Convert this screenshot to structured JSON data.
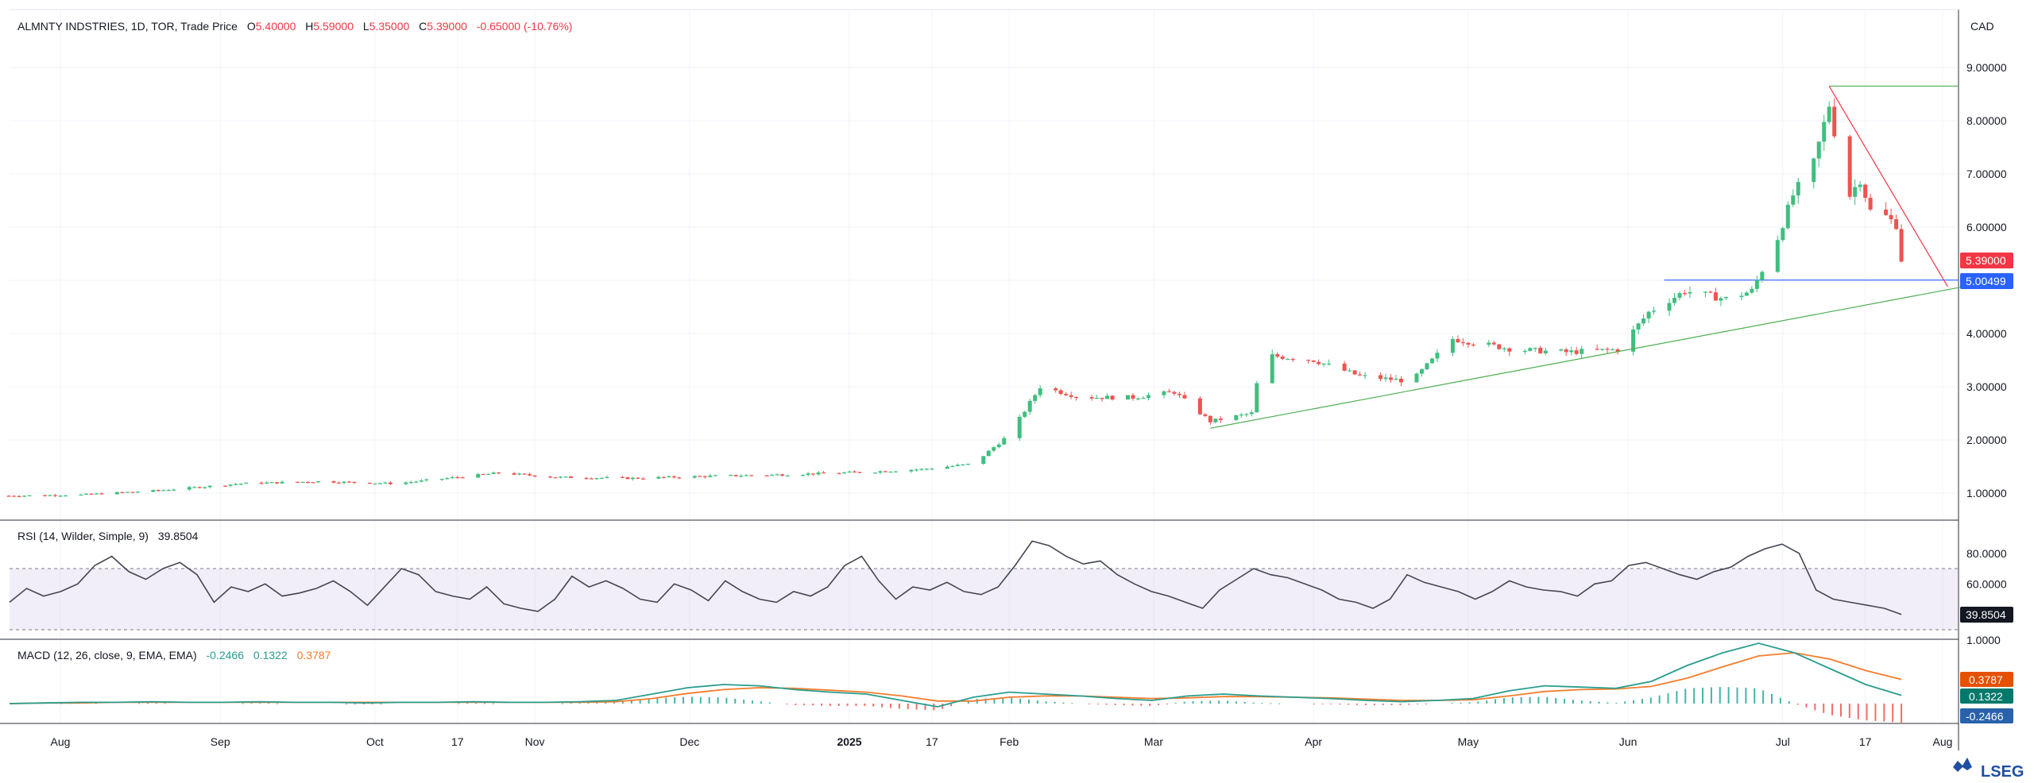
{
  "header": {
    "symbol": "ALMNTY INDSTRIES, 1D, TOR, Trade Price",
    "o_label": "O",
    "o_value": "5.40000",
    "h_label": "H",
    "h_value": "5.59000",
    "l_label": "L",
    "l_value": "5.35000",
    "c_label": "C",
    "c_value": "5.39000",
    "change": "-0.65000 (-10.76%)"
  },
  "currency": "CAD",
  "rsi": {
    "label": "RSI (14, Wilder, Simple, 9)",
    "value": "39.8504"
  },
  "macd": {
    "label": "MACD (12, 26, close, 9, EMA, EMA)",
    "v1": "-0.2466",
    "v2": "0.1322",
    "v3": "0.3787"
  },
  "price_tags": {
    "last": "5.39000",
    "line": "5.00499"
  },
  "rsi_tag": "39.8504",
  "macd_tags": [
    "0.3787",
    "0.1322",
    "-0.2466"
  ],
  "brand": "LSEG",
  "colors": {
    "up": "#26a69a",
    "up_body": "#3fbf7f",
    "down": "#ef5350",
    "line_blue": "#2962ff",
    "trend_green": "#4caf50",
    "trend_red": "#f23645",
    "rsi_line": "#434651",
    "macd_orange": "#f57c2b",
    "macd_teal": "#2a9d8f"
  },
  "chart_data": [
    {
      "type": "candlestick",
      "title": "ALMNTY INDSTRIES, 1D, TOR, Trade Price",
      "y_axis": {
        "ticks": [
          "1.00000",
          "2.00000",
          "3.00000",
          "4.00000",
          "5.00000",
          "6.00000",
          "7.00000",
          "8.00000",
          "9.00000"
        ],
        "range": [
          0.3,
          9.8
        ]
      },
      "x_axis": {
        "ticks": [
          "Aug",
          "Sep",
          "Oct",
          "17",
          "Nov",
          "Dec",
          "2025",
          "17",
          "Feb",
          "Mar",
          "Apr",
          "May",
          "Jun",
          "Jul",
          "17",
          "Aug"
        ]
      },
      "close_path": [
        [
          "2024-07-22",
          0.95
        ],
        [
          "2024-08-05",
          0.97
        ],
        [
          "2024-08-20",
          1.05
        ],
        [
          "2024-09-05",
          1.18
        ],
        [
          "2024-09-20",
          1.22
        ],
        [
          "2024-10-05",
          1.18
        ],
        [
          "2024-10-15",
          1.28
        ],
        [
          "2024-10-25",
          1.38
        ],
        [
          "2024-11-05",
          1.3
        ],
        [
          "2024-11-20",
          1.28
        ],
        [
          "2024-12-05",
          1.32
        ],
        [
          "2024-12-20",
          1.35
        ],
        [
          "2025-01-05",
          1.4
        ],
        [
          "2025-01-15",
          1.45
        ],
        [
          "2025-01-25",
          1.55
        ],
        [
          "2025-02-01",
          2.1
        ],
        [
          "2025-02-07",
          3.0
        ],
        [
          "2025-02-15",
          2.8
        ],
        [
          "2025-02-25",
          2.8
        ],
        [
          "2025-03-05",
          2.9
        ],
        [
          "2025-03-12",
          2.35
        ],
        [
          "2025-03-20",
          2.5
        ],
        [
          "2025-03-22",
          3.6
        ],
        [
          "2025-04-01",
          3.5
        ],
        [
          "2025-04-10",
          3.2
        ],
        [
          "2025-04-20",
          3.1
        ],
        [
          "2025-04-28",
          3.9
        ],
        [
          "2025-05-10",
          3.7
        ],
        [
          "2025-05-20",
          3.65
        ],
        [
          "2025-05-30",
          3.7
        ],
        [
          "2025-06-05",
          4.4
        ],
        [
          "2025-06-12",
          4.8
        ],
        [
          "2025-06-20",
          4.65
        ],
        [
          "2025-06-25",
          4.8
        ],
        [
          "2025-06-30",
          5.8
        ],
        [
          "2025-07-03",
          6.6
        ],
        [
          "2025-07-07",
          7.2
        ],
        [
          "2025-07-10",
          8.3
        ],
        [
          "2025-07-11",
          7.8
        ],
        [
          "2025-07-14",
          6.6
        ],
        [
          "2025-07-16",
          6.9
        ],
        [
          "2025-07-18",
          6.3
        ],
        [
          "2025-07-21",
          6.2
        ],
        [
          "2025-07-23",
          6.05
        ],
        [
          "2025-07-24",
          5.39
        ]
      ],
      "horizontal_lines": [
        {
          "value": 8.65,
          "color": "green"
        },
        {
          "value": 5.00499,
          "color": "blue"
        }
      ],
      "trend_lines": [
        {
          "color": "green",
          "from": [
            "2025-03-12",
            2.22
          ],
          "to": [
            "2025-08-05",
            4.88
          ]
        },
        {
          "color": "red",
          "from": [
            "2025-07-10",
            8.65
          ],
          "to": [
            "2025-08-02",
            4.88
          ]
        }
      ],
      "last_price": 5.39
    },
    {
      "type": "line",
      "title": "RSI (14, Wilder, Simple, 9)",
      "y_axis": {
        "ticks": [
          "60.0000",
          "80.0000"
        ],
        "range": [
          20,
          95
        ],
        "bands": [
          30,
          70
        ]
      },
      "series": [
        {
          "values": [
            48,
            57,
            52,
            55,
            60,
            72,
            78,
            68,
            63,
            70,
            74,
            66,
            48,
            58,
            55,
            60,
            52,
            54,
            57,
            62,
            55,
            46,
            58,
            70,
            66,
            55,
            52,
            50,
            58,
            47,
            44,
            42,
            50,
            65,
            58,
            62,
            57,
            50,
            48,
            60,
            56,
            49,
            62,
            55,
            50,
            48,
            55,
            52,
            58,
            72,
            78,
            62,
            50,
            58,
            56,
            61,
            55,
            53,
            58,
            72,
            88,
            85,
            78,
            73,
            75,
            66,
            60,
            55,
            52,
            48,
            44,
            56,
            63,
            70,
            66,
            64,
            60,
            56,
            50,
            48,
            44,
            50,
            66,
            61,
            58,
            55,
            50,
            55,
            62,
            58,
            56,
            55,
            52,
            60,
            62,
            72,
            74,
            70,
            66,
            63,
            68,
            71,
            78,
            83,
            86,
            80,
            56,
            50,
            48,
            46,
            44,
            40
          ]
        }
      ],
      "last_value": 39.8504
    },
    {
      "type": "line",
      "title": "MACD (12, 26, close, 9, EMA, EMA)",
      "y_axis": {
        "ticks": [
          "1.0000"
        ],
        "range": [
          -0.45,
          1.1
        ]
      },
      "series": [
        {
          "values": [
            0,
            0.01,
            0.02,
            0.02,
            0.03,
            0.02,
            0.02,
            0.03,
            0.02,
            0.02,
            0.01,
            0.02,
            0.02,
            0.03,
            0.02,
            0.02,
            0.03,
            0.05,
            0.15,
            0.25,
            0.3,
            0.28,
            0.22,
            0.18,
            0.15,
            0.05,
            -0.05,
            0.1,
            0.18,
            0.15,
            0.12,
            0.08,
            0.05,
            0.12,
            0.15,
            0.12,
            0.1,
            0.08,
            0.05,
            0.03,
            0.05,
            0.08,
            0.2,
            0.28,
            0.26,
            0.24,
            0.35,
            0.6,
            0.8,
            0.95,
            0.8,
            0.55,
            0.3,
            0.13
          ]
        },
        {
          "values": [
            0,
            0.01,
            0.01,
            0.02,
            0.02,
            0.02,
            0.02,
            0.02,
            0.02,
            0.02,
            0.02,
            0.02,
            0.02,
            0.02,
            0.02,
            0.02,
            0.02,
            0.03,
            0.08,
            0.16,
            0.22,
            0.25,
            0.24,
            0.21,
            0.18,
            0.12,
            0.04,
            0.04,
            0.1,
            0.12,
            0.12,
            0.1,
            0.08,
            0.09,
            0.11,
            0.11,
            0.1,
            0.09,
            0.07,
            0.05,
            0.05,
            0.06,
            0.12,
            0.19,
            0.22,
            0.23,
            0.27,
            0.4,
            0.58,
            0.75,
            0.8,
            0.7,
            0.52,
            0.38
          ]
        }
      ]
    }
  ]
}
